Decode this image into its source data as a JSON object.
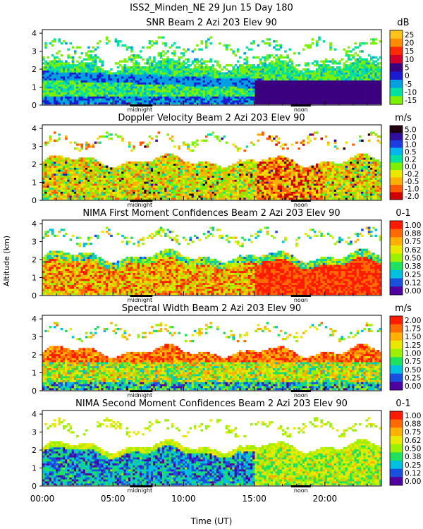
{
  "figure_title": "ISS2_Minden_NE  29 Jun 15 Day 180",
  "y_axis_label": "Altitude (km)",
  "x_axis_label": "Time (UT)",
  "x_tick_labels": [
    "00:00",
    "05:00",
    "10:00",
    "15:00",
    "20:00"
  ],
  "x_tick_hours": [
    0,
    5,
    10,
    15,
    20
  ],
  "marker_midnight": "midnight",
  "marker_noon": "noon",
  "chart_data": [
    {
      "type": "heatmap",
      "title": "SNR Beam 2 Azi 203 Elev 90",
      "unit": "dB",
      "xlabel": "Time (UT)",
      "ylabel": "Altitude (km)",
      "xlim": [
        0,
        24
      ],
      "ylim": [
        0,
        4.2
      ],
      "y_ticks": [
        0,
        1,
        2,
        3,
        4
      ],
      "colorbar_ticks": [
        "25",
        "20",
        "15",
        "10",
        "5",
        "0",
        "-5",
        "-10",
        "-15"
      ],
      "colorbar_colors": [
        "#ffc21a",
        "#ff8c00",
        "#ff2a00",
        "#d0002a",
        "#3a0080",
        "#1a1ad0",
        "#00a0e0",
        "#00e0a0",
        "#7cf000"
      ]
    },
    {
      "type": "heatmap",
      "title": "Doppler Velocity Beam 2 Azi 203 Elev 90",
      "unit": "m/s",
      "xlabel": "Time (UT)",
      "ylabel": "Altitude (km)",
      "xlim": [
        0,
        24
      ],
      "ylim": [
        0,
        4.2
      ],
      "y_ticks": [
        0,
        1,
        2,
        3,
        4
      ],
      "colorbar_ticks": [
        "5.0",
        "2.0",
        "1.0",
        "0.5",
        "0.2",
        "0.0",
        "-0.2",
        "-0.5",
        "-1.0",
        "-2.0"
      ],
      "colorbar_colors": [
        "#200010",
        "#3010a0",
        "#1a3ce0",
        "#00b4f0",
        "#00e0a0",
        "#7cf000",
        "#e8e800",
        "#ffb000",
        "#ff5a00",
        "#d00000"
      ]
    },
    {
      "type": "heatmap",
      "title": "NIMA First Moment Confidences Beam 2 Azi 203 Elev 90",
      "unit": "0-1",
      "xlabel": "Time (UT)",
      "ylabel": "Altitude (km)",
      "xlim": [
        0,
        24
      ],
      "ylim": [
        0,
        4.2
      ],
      "y_ticks": [
        0,
        1,
        2,
        3,
        4
      ],
      "colorbar_ticks": [
        "1.00",
        "0.88",
        "0.75",
        "0.62",
        "0.50",
        "0.38",
        "0.25",
        "0.12",
        "0.00"
      ],
      "colorbar_colors": [
        "#ff1a00",
        "#ff6a00",
        "#ffb000",
        "#e8e800",
        "#9cf000",
        "#20e060",
        "#00c0e0",
        "#1a50e0",
        "#5000a0"
      ]
    },
    {
      "type": "heatmap",
      "title": "Spectral Width Beam 2 Azi 203 Elev 90",
      "unit": "m/s",
      "xlabel": "Time (UT)",
      "ylabel": "Altitude (km)",
      "xlim": [
        0,
        24
      ],
      "ylim": [
        0,
        4.2
      ],
      "y_ticks": [
        0,
        1,
        2,
        3,
        4
      ],
      "colorbar_ticks": [
        "2.00",
        "1.75",
        "1.50",
        "1.25",
        "1.00",
        "0.75",
        "0.50",
        "0.25",
        "0.00"
      ],
      "colorbar_colors": [
        "#ff1a00",
        "#ff6a00",
        "#ffb000",
        "#e8e800",
        "#9cf000",
        "#20e060",
        "#00c0e0",
        "#1a50e0",
        "#5000a0"
      ]
    },
    {
      "type": "heatmap",
      "title": "NIMA Second Moment Confidences Beam 2 Azi 203 Elev 90",
      "unit": "0-1",
      "xlabel": "Time (UT)",
      "ylabel": "Altitude (km)",
      "xlim": [
        0,
        24
      ],
      "ylim": [
        0,
        4.2
      ],
      "y_ticks": [
        0,
        1,
        2,
        3,
        4
      ],
      "colorbar_ticks": [
        "1.00",
        "0.88",
        "0.75",
        "0.62",
        "0.50",
        "0.38",
        "0.25",
        "0.12",
        "0.00"
      ],
      "colorbar_colors": [
        "#ff1a00",
        "#ff6a00",
        "#ffb000",
        "#e8e800",
        "#9cf000",
        "#20e060",
        "#00c0e0",
        "#1a50e0",
        "#5000a0"
      ]
    }
  ]
}
